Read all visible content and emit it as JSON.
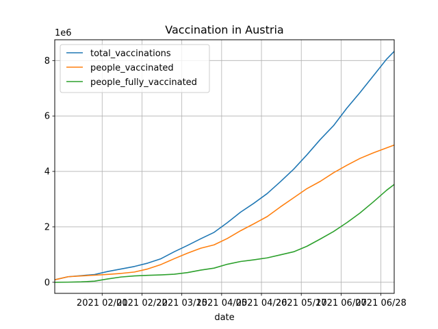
{
  "chart_data": {
    "type": "line",
    "title": "Vaccination in Austria",
    "xlabel": "date",
    "ylabel": "",
    "y_offset_text": "1e6",
    "y_scale": 1000000,
    "x_range": [
      "2021-01-07",
      "2021-07-05"
    ],
    "ylim": [
      -400000,
      8750000
    ],
    "grid": true,
    "legend_position": "top-left",
    "x_ticks": [
      {
        "date": "2021-02-01",
        "label": "2021 02/01"
      },
      {
        "date": "2021-02-22",
        "label": "2021 02/22"
      },
      {
        "date": "2021-03-15",
        "label": "2021 03/15"
      },
      {
        "date": "2021-04-05",
        "label": "2021 04/05"
      },
      {
        "date": "2021-04-26",
        "label": "2021 04/26"
      },
      {
        "date": "2021-05-17",
        "label": "2021 05/17"
      },
      {
        "date": "2021-06-07",
        "label": "2021 06/07"
      },
      {
        "date": "2021-06-28",
        "label": "2021 06/28"
      }
    ],
    "y_ticks": [
      0,
      2000000,
      4000000,
      6000000,
      8000000
    ],
    "y_tick_labels": [
      "0",
      "2",
      "4",
      "6",
      "8"
    ],
    "dates": [
      "2021-01-07",
      "2021-01-14",
      "2021-01-21",
      "2021-01-28",
      "2021-02-04",
      "2021-02-11",
      "2021-02-18",
      "2021-02-25",
      "2021-03-04",
      "2021-03-11",
      "2021-03-18",
      "2021-03-25",
      "2021-04-01",
      "2021-04-08",
      "2021-04-15",
      "2021-04-22",
      "2021-04-29",
      "2021-05-06",
      "2021-05-13",
      "2021-05-20",
      "2021-05-27",
      "2021-06-03",
      "2021-06-10",
      "2021-06-17",
      "2021-06-24",
      "2021-07-01",
      "2021-07-05"
    ],
    "series": [
      {
        "name": "total_vaccinations",
        "color": "#1f77b4",
        "values": [
          90000,
          200000,
          240000,
          280000,
          390000,
          480000,
          570000,
          690000,
          850000,
          1100000,
          1330000,
          1570000,
          1800000,
          2150000,
          2530000,
          2850000,
          3200000,
          3630000,
          4080000,
          4600000,
          5150000,
          5650000,
          6280000,
          6850000,
          7450000,
          8050000,
          8330000
        ]
      },
      {
        "name": "people_vaccinated",
        "color": "#ff7f0e",
        "values": [
          90000,
          200000,
          230000,
          255000,
          285000,
          320000,
          370000,
          480000,
          640000,
          850000,
          1050000,
          1230000,
          1350000,
          1580000,
          1860000,
          2110000,
          2370000,
          2720000,
          3050000,
          3380000,
          3640000,
          3950000,
          4220000,
          4470000,
          4670000,
          4850000,
          4950000
        ]
      },
      {
        "name": "people_fully_vaccinated",
        "color": "#2ca02c",
        "values": [
          0,
          5000,
          15000,
          40000,
          120000,
          190000,
          230000,
          250000,
          265000,
          290000,
          350000,
          440000,
          510000,
          650000,
          750000,
          810000,
          880000,
          990000,
          1100000,
          1300000,
          1560000,
          1830000,
          2150000,
          2500000,
          2900000,
          3320000,
          3530000
        ]
      }
    ]
  }
}
